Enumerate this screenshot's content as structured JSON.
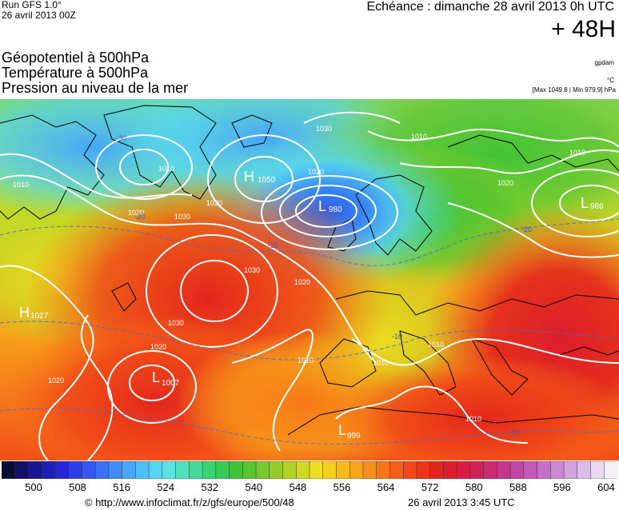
{
  "header": {
    "run": "Run GFS 1.0°",
    "run_date": "26 avril 2013 00Z",
    "echeance": "Echéance : dimanche 28 avril 2013 0h UTC",
    "lead_time": "+ 48H"
  },
  "titles": [
    "Géopotentiel à 500hPa",
    "Température à 500hPa",
    "Pression au niveau de la mer"
  ],
  "units": {
    "geopotential": "gpdam",
    "temperature": "°C",
    "pressure_range": "[Max 1049.8 | Min 979.9] hPa"
  },
  "map": {
    "pressure_centers": [
      {
        "type": "H",
        "value": "1050"
      },
      {
        "type": "L",
        "value": "980"
      },
      {
        "type": "L",
        "value": "986"
      },
      {
        "type": "H",
        "value": "1027"
      },
      {
        "type": "L",
        "value": "1007"
      },
      {
        "type": "L",
        "value": "999"
      }
    ],
    "isobar_labels": [
      "1010",
      "1020",
      "1030",
      "1010",
      "1020",
      "1030",
      "1020",
      "1010",
      "1010",
      "1020",
      "1030",
      "1020",
      "1010",
      "1010",
      "1020",
      "1030",
      "1020",
      "1010",
      "1010"
    ],
    "temperature_labels": [
      "-30",
      "-20",
      "-20",
      "-10",
      "-20",
      "-10"
    ]
  },
  "colorbar": {
    "ticks": [
      "500",
      "508",
      "516",
      "524",
      "532",
      "540",
      "548",
      "556",
      "564",
      "572",
      "580",
      "588",
      "596",
      "604"
    ],
    "colors": [
      "#0b0b3a",
      "#101064",
      "#17178f",
      "#1e1eb8",
      "#2626d9",
      "#2d3de8",
      "#3357f0",
      "#3a72f5",
      "#418cf8",
      "#47a6fa",
      "#4ebffb",
      "#54d5f5",
      "#58e3e0",
      "#4fe0bd",
      "#44da98",
      "#3ad374",
      "#34cc52",
      "#3fc437",
      "#58c430",
      "#76c82c",
      "#94cd29",
      "#b2d226",
      "#d0d822",
      "#ecde20",
      "#f7d01e",
      "#f8bb1c",
      "#f8a41a",
      "#f88d19",
      "#f87618",
      "#f55e18",
      "#f04818",
      "#ea3419",
      "#e3241c",
      "#dc1d2b",
      "#d51e40",
      "#cf2358",
      "#c92a71",
      "#c4368a",
      "#c146a1",
      "#c25ab5",
      "#c670c6",
      "#cc89d3",
      "#d3a3de",
      "#dcbde8",
      "#e8d8f2",
      "#f4eef9"
    ]
  },
  "footer": {
    "url": "© http://www.infoclimat.fr/z/gfs/europe/500/48",
    "issued": "26 avril 2013  3:45 UTC"
  }
}
